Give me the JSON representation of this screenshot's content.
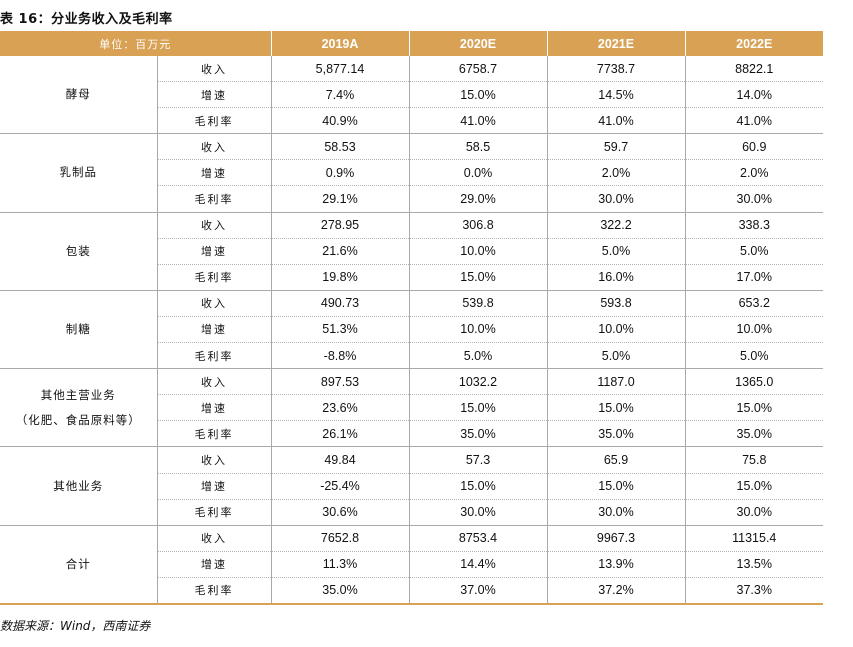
{
  "title": "表 16：分业务收入及毛利率",
  "header": {
    "unit": "单位：百万元",
    "years": [
      "2019A",
      "2020E",
      "2021E",
      "2022E"
    ]
  },
  "segments": [
    {
      "name": "酵母",
      "name_line2": "",
      "rows": [
        {
          "metric": "收入",
          "values": [
            "5,877.14",
            "6758.7",
            "7738.7",
            "8822.1"
          ]
        },
        {
          "metric": "增速",
          "values": [
            "7.4%",
            "15.0%",
            "14.5%",
            "14.0%"
          ]
        },
        {
          "metric": "毛利率",
          "values": [
            "40.9%",
            "41.0%",
            "41.0%",
            "41.0%"
          ]
        }
      ]
    },
    {
      "name": "乳制品",
      "name_line2": "",
      "rows": [
        {
          "metric": "收入",
          "values": [
            "58.53",
            "58.5",
            "59.7",
            "60.9"
          ]
        },
        {
          "metric": "增速",
          "values": [
            "0.9%",
            "0.0%",
            "2.0%",
            "2.0%"
          ]
        },
        {
          "metric": "毛利率",
          "values": [
            "29.1%",
            "29.0%",
            "30.0%",
            "30.0%"
          ]
        }
      ]
    },
    {
      "name": "包装",
      "name_line2": "",
      "rows": [
        {
          "metric": "收入",
          "values": [
            "278.95",
            "306.8",
            "322.2",
            "338.3"
          ]
        },
        {
          "metric": "增速",
          "values": [
            "21.6%",
            "10.0%",
            "5.0%",
            "5.0%"
          ]
        },
        {
          "metric": "毛利率",
          "values": [
            "19.8%",
            "15.0%",
            "16.0%",
            "17.0%"
          ]
        }
      ]
    },
    {
      "name": "制糖",
      "name_line2": "",
      "rows": [
        {
          "metric": "收入",
          "values": [
            "490.73",
            "539.8",
            "593.8",
            "653.2"
          ]
        },
        {
          "metric": "增速",
          "values": [
            "51.3%",
            "10.0%",
            "10.0%",
            "10.0%"
          ]
        },
        {
          "metric": "毛利率",
          "values": [
            "-8.8%",
            "5.0%",
            "5.0%",
            "5.0%"
          ]
        }
      ]
    },
    {
      "name": "其他主营业务",
      "name_line2": "（化肥、食品原料等）",
      "rows": [
        {
          "metric": "收入",
          "values": [
            "897.53",
            "1032.2",
            "1187.0",
            "1365.0"
          ]
        },
        {
          "metric": "增速",
          "values": [
            "23.6%",
            "15.0%",
            "15.0%",
            "15.0%"
          ]
        },
        {
          "metric": "毛利率",
          "values": [
            "26.1%",
            "35.0%",
            "35.0%",
            "35.0%"
          ]
        }
      ]
    },
    {
      "name": "其他业务",
      "name_line2": "",
      "rows": [
        {
          "metric": "收入",
          "values": [
            "49.84",
            "57.3",
            "65.9",
            "75.8"
          ]
        },
        {
          "metric": "增速",
          "values": [
            "-25.4%",
            "15.0%",
            "15.0%",
            "15.0%"
          ]
        },
        {
          "metric": "毛利率",
          "values": [
            "30.6%",
            "30.0%",
            "30.0%",
            "30.0%"
          ]
        }
      ]
    },
    {
      "name": "合计",
      "name_line2": "",
      "rows": [
        {
          "metric": "收入",
          "values": [
            "7652.8",
            "8753.4",
            "9967.3",
            "11315.4"
          ]
        },
        {
          "metric": "增速",
          "values": [
            "11.3%",
            "14.4%",
            "13.9%",
            "13.5%"
          ]
        },
        {
          "metric": "毛利率",
          "values": [
            "35.0%",
            "37.0%",
            "37.2%",
            "37.3%"
          ]
        }
      ]
    }
  ],
  "source": "数据来源：Wind，西南证券",
  "colors": {
    "header_bg": "#d8a154",
    "header_text": "#ffffff",
    "grid": "#a9a9a9"
  }
}
